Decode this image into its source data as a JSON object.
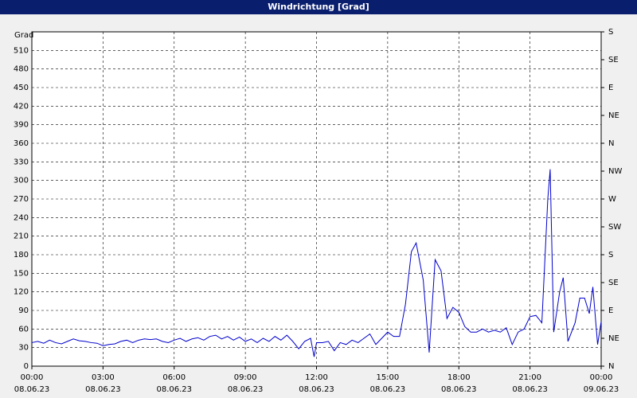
{
  "chart_data": {
    "type": "line",
    "title": "Windrichtung [Grad]",
    "ylabel": "Grad",
    "x": [
      0,
      0.25,
      0.5,
      0.75,
      1,
      1.25,
      1.5,
      1.75,
      2,
      2.25,
      2.5,
      2.75,
      3,
      3.25,
      3.5,
      3.75,
      4,
      4.25,
      4.5,
      4.75,
      5,
      5.25,
      5.5,
      5.75,
      6,
      6.25,
      6.5,
      6.75,
      7,
      7.25,
      7.5,
      7.75,
      8,
      8.25,
      8.5,
      8.75,
      9,
      9.25,
      9.5,
      9.75,
      10,
      10.25,
      10.5,
      10.75,
      11,
      11.25,
      11.5,
      11.75,
      11.9,
      12,
      12.25,
      12.5,
      12.75,
      13,
      13.25,
      13.5,
      13.75,
      14,
      14.25,
      14.5,
      14.75,
      15,
      15.25,
      15.5,
      15.75,
      16,
      16.2,
      16.5,
      16.75,
      17,
      17.25,
      17.5,
      17.75,
      18,
      18.25,
      18.5,
      18.75,
      19,
      19.25,
      19.5,
      19.75,
      20,
      20.25,
      20.5,
      20.75,
      21,
      21.25,
      21.5,
      21.75,
      21.85,
      22,
      22.25,
      22.4,
      22.6,
      22.9,
      23.1,
      23.3,
      23.5,
      23.65,
      23.85,
      24
    ],
    "series": [
      {
        "name": "Windrichtung",
        "color": "#0000cc",
        "values": [
          38,
          40,
          37,
          42,
          38,
          36,
          40,
          44,
          41,
          40,
          38,
          37,
          33,
          35,
          36,
          40,
          42,
          38,
          42,
          44,
          43,
          44,
          40,
          38,
          42,
          45,
          40,
          44,
          46,
          42,
          48,
          50,
          44,
          48,
          42,
          47,
          40,
          44,
          38,
          45,
          40,
          48,
          42,
          50,
          40,
          28,
          40,
          45,
          15,
          38,
          38,
          40,
          25,
          38,
          35,
          42,
          38,
          45,
          52,
          35,
          45,
          55,
          48,
          48,
          100,
          185,
          199,
          139,
          22,
          172,
          154,
          77,
          95,
          87,
          64,
          55,
          55,
          60,
          55,
          58,
          55,
          62,
          35,
          55,
          60,
          80,
          82,
          70,
          270,
          318,
          55,
          120,
          143,
          40,
          70,
          110,
          110,
          85,
          128,
          35,
          72
        ]
      }
    ],
    "xlim": [
      0,
      24
    ],
    "xticks": [
      {
        "value": 0,
        "label": "00:00"
      },
      {
        "value": 3,
        "label": "03:00"
      },
      {
        "value": 6,
        "label": "06:00"
      },
      {
        "value": 9,
        "label": "09:00"
      },
      {
        "value": 12,
        "label": "12:00"
      },
      {
        "value": 15,
        "label": "15:00"
      },
      {
        "value": 18,
        "label": "18:00"
      },
      {
        "value": 21,
        "label": "21:00"
      },
      {
        "value": 24,
        "label": "00:00"
      }
    ],
    "xtick_dates": [
      "08.06.23",
      "08.06.23",
      "08.06.23",
      "08.06.23",
      "08.06.23",
      "08.06.23",
      "08.06.23",
      "08.06.23",
      "09.06.23"
    ],
    "ylim": [
      0,
      540
    ],
    "yticks": [
      0,
      30,
      60,
      90,
      120,
      150,
      180,
      210,
      240,
      270,
      300,
      330,
      360,
      390,
      420,
      450,
      480,
      510
    ],
    "y2lim": [
      0,
      540
    ],
    "y2ticks": [
      {
        "value": 0,
        "label": "N"
      },
      {
        "value": 45,
        "label": "NE"
      },
      {
        "value": 90,
        "label": "E"
      },
      {
        "value": 135,
        "label": "SE"
      },
      {
        "value": 180,
        "label": "S"
      },
      {
        "value": 225,
        "label": "SW"
      },
      {
        "value": 270,
        "label": "W"
      },
      {
        "value": 315,
        "label": "NW"
      },
      {
        "value": 360,
        "label": "N"
      },
      {
        "value": 405,
        "label": "NE"
      },
      {
        "value": 450,
        "label": "E"
      },
      {
        "value": 495,
        "label": "SE"
      },
      {
        "value": 540,
        "label": "S"
      }
    ],
    "grid": true
  }
}
